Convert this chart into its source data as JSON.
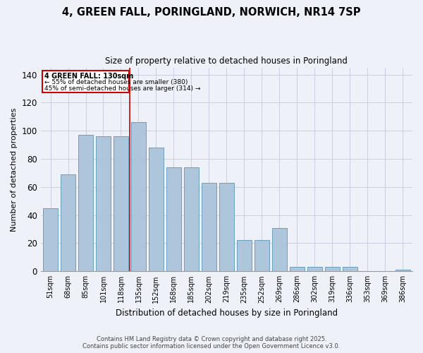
{
  "title": "4, GREEN FALL, PORINGLAND, NORWICH, NR14 7SP",
  "subtitle": "Size of property relative to detached houses in Poringland",
  "xlabel": "Distribution of detached houses by size in Poringland",
  "ylabel": "Number of detached properties",
  "categories": [
    "51sqm",
    "68sqm",
    "85sqm",
    "101sqm",
    "118sqm",
    "135sqm",
    "152sqm",
    "168sqm",
    "185sqm",
    "202sqm",
    "219sqm",
    "235sqm",
    "252sqm",
    "269sqm",
    "286sqm",
    "302sqm",
    "319sqm",
    "336sqm",
    "353sqm",
    "369sqm",
    "386sqm"
  ],
  "values": [
    45,
    69,
    97,
    96,
    96,
    106,
    88,
    74,
    74,
    63,
    63,
    22,
    22,
    31,
    3,
    3,
    3,
    3,
    0,
    0,
    1
  ],
  "bar_color": "#aec6dc",
  "bar_edge_color": "#6a9fc0",
  "marker_label": "4 GREEN FALL: 130sqm",
  "annotation_line1": "← 55% of detached houses are smaller (380)",
  "annotation_line2": "45% of semi-detached houses are larger (314) →",
  "ref_line_color": "#cc0000",
  "box_color": "#cc0000",
  "ylim": [
    0,
    145
  ],
  "yticks": [
    0,
    20,
    40,
    60,
    80,
    100,
    120,
    140
  ],
  "footer_line1": "Contains HM Land Registry data © Crown copyright and database right 2025.",
  "footer_line2": "Contains public sector information licensed under the Open Government Licence v3.0.",
  "bg_color": "#eef2f8",
  "grid_color": "#c8cfe0"
}
